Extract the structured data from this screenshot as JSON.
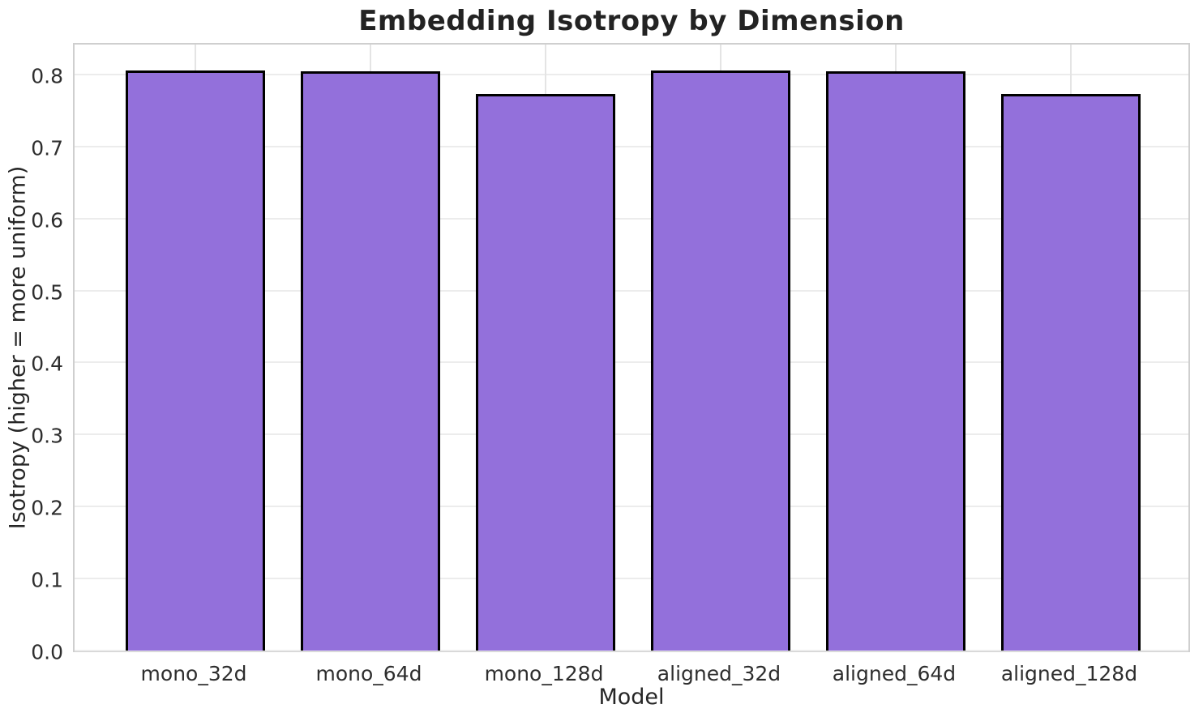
{
  "chart_data": {
    "type": "bar",
    "title": "Embedding Isotropy by Dimension",
    "xlabel": "Model",
    "ylabel": "Isotropy (higher = more uniform)",
    "categories": [
      "mono_32d",
      "mono_64d",
      "mono_128d",
      "aligned_32d",
      "aligned_64d",
      "aligned_128d"
    ],
    "values": [
      0.806,
      0.804,
      0.773,
      0.806,
      0.804,
      0.773
    ],
    "yticks": [
      0.0,
      0.1,
      0.2,
      0.3,
      0.4,
      0.5,
      0.6,
      0.7,
      0.8
    ],
    "ylim": [
      0,
      0.846
    ],
    "xlim": [
      -0.69,
      5.69
    ],
    "bar_width_units": 0.8,
    "grid": true,
    "legend": null,
    "colors": {
      "bar_fill": "#9370DB",
      "bar_edge": "#000000",
      "grid_line": "#ececec",
      "spine": "#cfcfcf",
      "text": "#262626",
      "background": "#ffffff"
    }
  }
}
